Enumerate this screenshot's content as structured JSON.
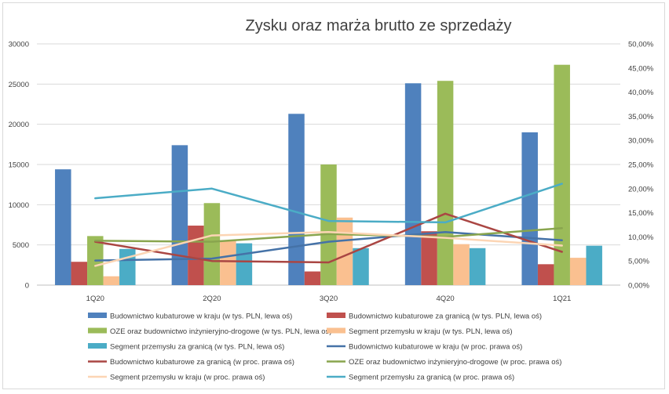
{
  "chart_data": {
    "type": "bar",
    "title": "Zysku oraz marża brutto ze sprzedaży",
    "categories": [
      "1Q20",
      "2Q20",
      "3Q20",
      "4Q20",
      "1Q21"
    ],
    "left_axis": {
      "min": 0,
      "max": 30000,
      "step": 5000,
      "tick_labels": [
        "0",
        "5000",
        "10000",
        "15000",
        "20000",
        "25000",
        "30000"
      ]
    },
    "right_axis": {
      "min": 0,
      "max": 0.5,
      "step": 0.05,
      "tick_labels": [
        "0,00%",
        "5,00%",
        "10,00%",
        "15,00%",
        "20,00%",
        "25,00%",
        "30,00%",
        "35,00%",
        "40,00%",
        "45,00%",
        "50,00%"
      ]
    },
    "grid": true,
    "legend_position": "bottom",
    "bar_series": [
      {
        "name": "Budownictwo kubaturowe w kraju (w tys. PLN, lewa oś)",
        "color": "#4f81bd",
        "values": [
          14400,
          17400,
          21300,
          25100,
          19000
        ]
      },
      {
        "name": "Budownictwo kubaturowe za granicą (w tys. PLN, lewa oś)",
        "color": "#c0504d",
        "values": [
          2900,
          7400,
          1700,
          6700,
          2600
        ]
      },
      {
        "name": "OZE oraz budownictwo inżynieryjno-drogowe (w tys. PLN, lewa oś)",
        "color": "#9bbb59",
        "values": [
          6100,
          10200,
          15000,
          25400,
          27400
        ]
      },
      {
        "name": "Segment przemysłu w kraju (w tys. PLN, lewa oś)",
        "color": "#fac090",
        "values": [
          1100,
          5500,
          8400,
          5100,
          3400
        ]
      },
      {
        "name": "Segment przemysłu za granicą (w tys. PLN, lewa oś)",
        "color": "#4bacc6",
        "values": [
          4500,
          5200,
          4600,
          4600,
          4900
        ]
      }
    ],
    "line_series": [
      {
        "name": "Budownictwo kubaturowe w kraju (w proc. prawa oś)",
        "color": "#4572a7",
        "values": [
          0.051,
          0.055,
          0.09,
          0.11,
          0.093
        ]
      },
      {
        "name": "Budownictwo kubaturowe za granicą (w proc. prawa oś)",
        "color": "#aa4643",
        "values": [
          0.09,
          0.05,
          0.047,
          0.148,
          0.069
        ]
      },
      {
        "name": "OZE oraz budownictwo inżynieryjno-drogowe (w proc. prawa oś)",
        "color": "#89a54e",
        "values": [
          0.092,
          0.09,
          0.106,
          0.1,
          0.118
        ]
      },
      {
        "name": "Segment przemysłu w kraju (w proc. prawa oś)",
        "color": "#fcd5b4",
        "values": [
          0.04,
          0.103,
          0.11,
          0.098,
          0.082
        ]
      },
      {
        "name": "Segment przemysłu za granicą (w proc. prawa oś)",
        "color": "#4bacc6",
        "values": [
          0.18,
          0.2,
          0.133,
          0.13,
          0.21
        ]
      }
    ]
  }
}
